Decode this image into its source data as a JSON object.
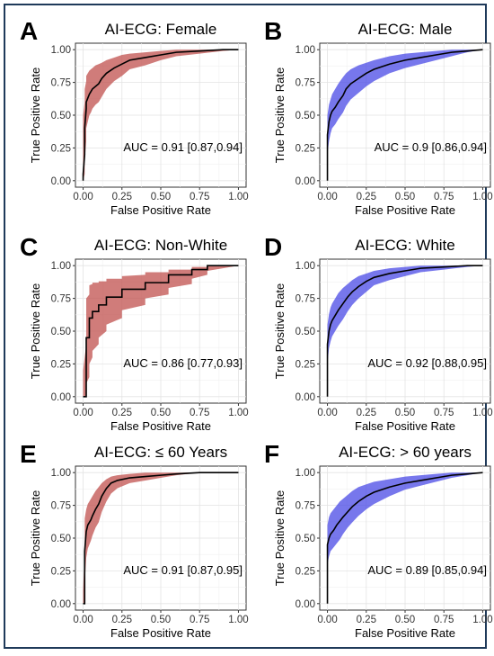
{
  "figure": {
    "border_color": "#1f3a5a",
    "fill_colors": {
      "red": "#c0504d",
      "blue": "#4a4ae6"
    },
    "line_color": "#000000"
  },
  "chart_data": [
    {
      "letter": "A",
      "title": "AI-ECG: Female",
      "type": "line",
      "band_color": "red",
      "xlabel": "False Positive Rate",
      "ylabel": "True Positive Rate",
      "xlim": [
        0,
        1
      ],
      "ylim": [
        0,
        1
      ],
      "grid": true,
      "x_ticks": [
        "0.00",
        "0.25",
        "0.50",
        "0.75",
        "1.00"
      ],
      "y_ticks": [
        "0.00",
        "0.25",
        "0.50",
        "0.75",
        "1.00"
      ],
      "annotation": "AUC = 0.91 [0.87,0.94]",
      "series": [
        {
          "x": [
            0,
            0,
            0.01,
            0.01,
            0.02,
            0.02,
            0.03,
            0.04,
            0.05,
            0.06,
            0.08,
            0.1,
            0.12,
            0.15,
            0.2,
            0.25,
            0.3,
            0.4,
            0.5,
            0.6,
            0.75,
            0.9,
            1.0
          ],
          "y": [
            0,
            0.05,
            0.2,
            0.4,
            0.55,
            0.6,
            0.63,
            0.66,
            0.68,
            0.7,
            0.72,
            0.74,
            0.78,
            0.82,
            0.86,
            0.89,
            0.92,
            0.94,
            0.96,
            0.98,
            0.99,
            1.0,
            1.0
          ]
        }
      ],
      "band_upper": [
        0.1,
        0.5,
        0.6,
        0.7,
        0.76,
        0.8,
        0.82,
        0.84,
        0.85,
        0.86,
        0.88,
        0.89,
        0.9,
        0.92,
        0.94,
        0.96,
        0.97,
        0.98,
        0.99,
        1.0,
        1.0,
        1.0,
        1.0
      ],
      "band_lower": [
        0,
        0,
        0.05,
        0.15,
        0.3,
        0.4,
        0.45,
        0.5,
        0.52,
        0.55,
        0.58,
        0.6,
        0.64,
        0.7,
        0.76,
        0.8,
        0.85,
        0.88,
        0.92,
        0.95,
        0.97,
        0.99,
        1.0
      ]
    },
    {
      "letter": "B",
      "title": "AI-ECG: Male",
      "type": "line",
      "band_color": "blue",
      "xlabel": "False Positive Rate",
      "ylabel": "True Positive Rate",
      "xlim": [
        0,
        1
      ],
      "ylim": [
        0,
        1
      ],
      "grid": true,
      "x_ticks": [
        "0.00",
        "0.25",
        "0.50",
        "0.75",
        "1.00"
      ],
      "y_ticks": [
        "0.00",
        "0.25",
        "0.50",
        "0.75",
        "1.00"
      ],
      "annotation": "AUC = 0.9 [0.86,0.94]",
      "series": [
        {
          "x": [
            0,
            0,
            0.01,
            0.02,
            0.03,
            0.05,
            0.07,
            0.1,
            0.12,
            0.15,
            0.2,
            0.25,
            0.3,
            0.4,
            0.5,
            0.6,
            0.7,
            0.8,
            0.9,
            1.0
          ],
          "y": [
            0,
            0.35,
            0.45,
            0.5,
            0.53,
            0.56,
            0.6,
            0.65,
            0.7,
            0.74,
            0.78,
            0.82,
            0.85,
            0.89,
            0.92,
            0.94,
            0.96,
            0.98,
            0.99,
            1.0
          ]
        }
      ],
      "band_upper": [
        0.15,
        0.5,
        0.58,
        0.62,
        0.66,
        0.7,
        0.74,
        0.79,
        0.82,
        0.85,
        0.88,
        0.9,
        0.92,
        0.95,
        0.97,
        0.98,
        0.99,
        1.0,
        1.0,
        1.0
      ],
      "band_lower": [
        0,
        0.2,
        0.3,
        0.36,
        0.4,
        0.43,
        0.47,
        0.52,
        0.57,
        0.62,
        0.67,
        0.72,
        0.76,
        0.82,
        0.86,
        0.89,
        0.92,
        0.95,
        0.98,
        1.0
      ]
    },
    {
      "letter": "C",
      "title": "AI-ECG: Non-White",
      "type": "line",
      "band_color": "red",
      "xlabel": "False Positive Rate",
      "ylabel": "True Positive Rate",
      "xlim": [
        0,
        1
      ],
      "ylim": [
        0,
        1
      ],
      "grid": true,
      "x_ticks": [
        "0.00",
        "0.25",
        "0.50",
        "0.75",
        "1.00"
      ],
      "y_ticks": [
        "0.00",
        "0.25",
        "0.50",
        "0.75",
        "1.00"
      ],
      "annotation": "AUC = 0.86 [0.77,0.93]",
      "series": [
        {
          "x": [
            0,
            0.02,
            0.02,
            0.04,
            0.04,
            0.06,
            0.06,
            0.1,
            0.1,
            0.15,
            0.15,
            0.25,
            0.25,
            0.4,
            0.4,
            0.55,
            0.55,
            0.7,
            0.7,
            0.8,
            0.8,
            1.0
          ],
          "y": [
            0,
            0,
            0.45,
            0.45,
            0.6,
            0.6,
            0.65,
            0.65,
            0.7,
            0.7,
            0.76,
            0.76,
            0.82,
            0.82,
            0.87,
            0.87,
            0.93,
            0.93,
            0.97,
            0.97,
            1.0,
            1.0
          ]
        }
      ],
      "band_upper": [
        0.2,
        0.4,
        0.75,
        0.78,
        0.85,
        0.86,
        0.87,
        0.87,
        0.88,
        0.88,
        0.9,
        0.9,
        0.92,
        0.93,
        0.95,
        0.95,
        0.97,
        0.97,
        0.99,
        0.99,
        1.0,
        1.0
      ],
      "band_lower": [
        0,
        0,
        0.1,
        0.15,
        0.25,
        0.3,
        0.35,
        0.4,
        0.45,
        0.5,
        0.55,
        0.6,
        0.66,
        0.7,
        0.75,
        0.78,
        0.83,
        0.86,
        0.9,
        0.93,
        0.96,
        1.0
      ]
    },
    {
      "letter": "D",
      "title": "AI-ECG: White",
      "type": "line",
      "band_color": "blue",
      "xlabel": "False Positive Rate",
      "ylabel": "True Positive Rate",
      "xlim": [
        0,
        1
      ],
      "ylim": [
        0,
        1
      ],
      "grid": true,
      "x_ticks": [
        "0.00",
        "0.25",
        "0.50",
        "0.75",
        "1.00"
      ],
      "y_ticks": [
        "0.00",
        "0.25",
        "0.50",
        "0.75",
        "1.00"
      ],
      "annotation": "AUC = 0.92 [0.88,0.95]",
      "series": [
        {
          "x": [
            0,
            0,
            0.01,
            0.02,
            0.03,
            0.05,
            0.07,
            0.1,
            0.13,
            0.16,
            0.2,
            0.25,
            0.3,
            0.4,
            0.5,
            0.6,
            0.75,
            0.9,
            1.0
          ],
          "y": [
            0,
            0.4,
            0.5,
            0.55,
            0.58,
            0.62,
            0.66,
            0.71,
            0.76,
            0.8,
            0.84,
            0.88,
            0.91,
            0.94,
            0.96,
            0.98,
            0.99,
            1.0,
            1.0
          ]
        }
      ],
      "band_upper": [
        0.2,
        0.55,
        0.63,
        0.68,
        0.71,
        0.75,
        0.79,
        0.83,
        0.86,
        0.89,
        0.92,
        0.94,
        0.96,
        0.98,
        0.99,
        1.0,
        1.0,
        1.0,
        1.0
      ],
      "band_lower": [
        0,
        0.25,
        0.37,
        0.42,
        0.46,
        0.5,
        0.54,
        0.59,
        0.65,
        0.7,
        0.75,
        0.8,
        0.85,
        0.89,
        0.92,
        0.95,
        0.97,
        0.99,
        1.0
      ]
    },
    {
      "letter": "E",
      "title": "AI-ECG: ≤ 60 Years",
      "type": "line",
      "band_color": "red",
      "xlabel": "False Positive Rate",
      "ylabel": "True Positive Rate",
      "xlim": [
        0,
        1
      ],
      "ylim": [
        0,
        1
      ],
      "grid": true,
      "x_ticks": [
        "0.00",
        "0.25",
        "0.50",
        "0.75",
        "1.00"
      ],
      "y_ticks": [
        "0.00",
        "0.25",
        "0.50",
        "0.75",
        "1.00"
      ],
      "annotation": "AUC = 0.91 [0.87,0.95]",
      "series": [
        {
          "x": [
            0,
            0.01,
            0.01,
            0.02,
            0.03,
            0.04,
            0.05,
            0.06,
            0.08,
            0.1,
            0.12,
            0.15,
            0.18,
            0.22,
            0.3,
            0.4,
            0.5,
            0.6,
            0.75,
            1.0
          ],
          "y": [
            0,
            0,
            0.4,
            0.55,
            0.6,
            0.62,
            0.64,
            0.67,
            0.72,
            0.76,
            0.82,
            0.88,
            0.92,
            0.94,
            0.96,
            0.97,
            0.98,
            0.99,
            1.0,
            1.0
          ]
        }
      ],
      "band_upper": [
        0.1,
        0.4,
        0.65,
        0.72,
        0.76,
        0.78,
        0.8,
        0.82,
        0.86,
        0.89,
        0.92,
        0.95,
        0.97,
        0.98,
        0.99,
        1.0,
        1.0,
        1.0,
        1.0,
        1.0
      ],
      "band_lower": [
        0,
        0,
        0.15,
        0.35,
        0.42,
        0.45,
        0.48,
        0.52,
        0.58,
        0.62,
        0.7,
        0.78,
        0.84,
        0.88,
        0.92,
        0.94,
        0.96,
        0.98,
        1.0,
        1.0
      ]
    },
    {
      "letter": "F",
      "title": "AI-ECG: > 60 years",
      "type": "line",
      "band_color": "blue",
      "xlabel": "False Positive Rate",
      "ylabel": "True Positive Rate",
      "xlim": [
        0,
        1
      ],
      "ylim": [
        0,
        1
      ],
      "grid": true,
      "x_ticks": [
        "0.00",
        "0.25",
        "0.50",
        "0.75",
        "1.00"
      ],
      "y_ticks": [
        "0.00",
        "0.25",
        "0.50",
        "0.75",
        "1.00"
      ],
      "annotation": "AUC = 0.89 [0.85,0.94]",
      "series": [
        {
          "x": [
            0,
            0,
            0.01,
            0.02,
            0.04,
            0.06,
            0.08,
            0.1,
            0.13,
            0.16,
            0.2,
            0.25,
            0.3,
            0.4,
            0.5,
            0.6,
            0.7,
            0.8,
            0.9,
            1.0
          ],
          "y": [
            0,
            0.45,
            0.5,
            0.53,
            0.56,
            0.6,
            0.63,
            0.66,
            0.7,
            0.74,
            0.78,
            0.82,
            0.85,
            0.89,
            0.92,
            0.94,
            0.96,
            0.98,
            0.99,
            1.0
          ]
        }
      ],
      "band_upper": [
        0.2,
        0.6,
        0.66,
        0.69,
        0.72,
        0.75,
        0.78,
        0.8,
        0.83,
        0.86,
        0.89,
        0.91,
        0.93,
        0.95,
        0.97,
        0.98,
        0.99,
        1.0,
        1.0,
        1.0
      ],
      "band_lower": [
        0,
        0.3,
        0.36,
        0.4,
        0.43,
        0.46,
        0.49,
        0.53,
        0.58,
        0.62,
        0.67,
        0.72,
        0.76,
        0.82,
        0.87,
        0.9,
        0.93,
        0.96,
        0.98,
        1.0
      ]
    }
  ]
}
